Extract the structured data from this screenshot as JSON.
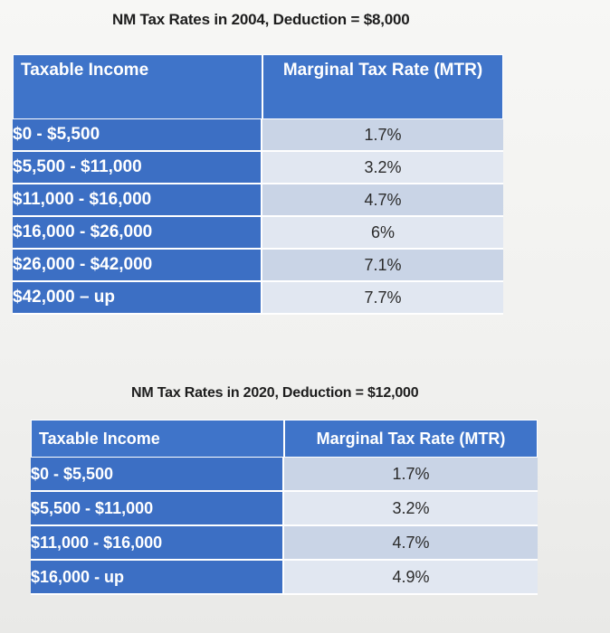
{
  "table1": {
    "title": "NM Tax Rates in 2004, Deduction = $8,000",
    "headers": [
      "Taxable Income",
      "Marginal Tax Rate (MTR)"
    ],
    "rows": [
      {
        "income": "$0 - $5,500",
        "rate": "1.7%"
      },
      {
        "income": "$5,500 - $11,000",
        "rate": "3.2%"
      },
      {
        "income": "$11,000 - $16,000",
        "rate": "4.7%"
      },
      {
        "income": "$16,000 - $26,000",
        "rate": "6%"
      },
      {
        "income": "$26,000 - $42,000",
        "rate": "7.1%"
      },
      {
        "income": "$42,000 – up",
        "rate": "7.7%"
      }
    ]
  },
  "table2": {
    "title": "NM Tax Rates in 2020, Deduction = $12,000",
    "headers": [
      "Taxable Income",
      "Marginal Tax Rate (MTR)"
    ],
    "rows": [
      {
        "income": "$0 - $5,500",
        "rate": "1.7%"
      },
      {
        "income": "$5,500 - $11,000",
        "rate": "3.2%"
      },
      {
        "income": "$11,000 - $16,000",
        "rate": "4.7%"
      },
      {
        "income": "$16,000 - up",
        "rate": "4.9%"
      }
    ]
  }
}
